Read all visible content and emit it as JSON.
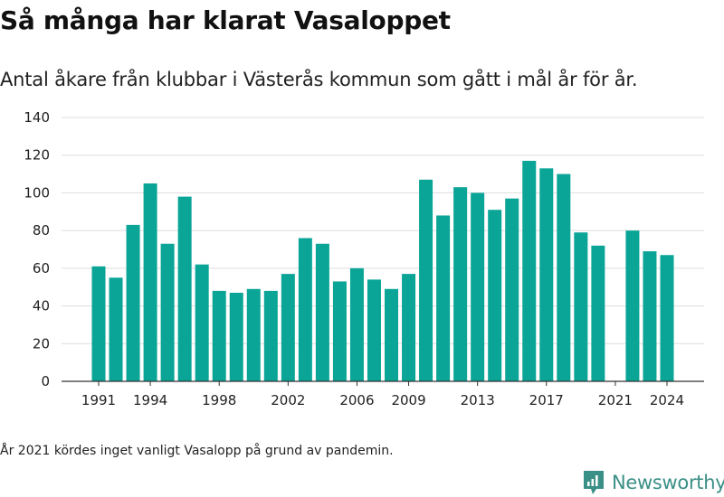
{
  "title": "Så många har klarat Vasaloppet",
  "subtitle": "Antal åkare från klubbar i Västerås kommun som gått i mål år för år.",
  "note": "År 2021 kördes inget vanligt Vasalopp på grund av pandemin.",
  "brand": "Newsworthy",
  "colors": {
    "bar": "#0aa596",
    "grid": "#dddddd",
    "axis": "#333333",
    "brand": "#3a8f86"
  },
  "chart_data": {
    "type": "bar",
    "title": "Så många har klarat Vasaloppet",
    "xlabel": "",
    "ylabel": "",
    "ylim": [
      0,
      140
    ],
    "yticks": [
      0,
      20,
      40,
      60,
      80,
      100,
      120,
      140
    ],
    "xtick_labels": [
      "1991",
      "1994",
      "1998",
      "2002",
      "2006",
      "2009",
      "2013",
      "2017",
      "2021",
      "2024"
    ],
    "grid": true,
    "categories": [
      1991,
      1992,
      1993,
      1994,
      1995,
      1996,
      1997,
      1998,
      1999,
      2000,
      2001,
      2002,
      2003,
      2004,
      2005,
      2006,
      2007,
      2008,
      2009,
      2010,
      2011,
      2012,
      2013,
      2014,
      2015,
      2016,
      2017,
      2018,
      2019,
      2020,
      2021,
      2022,
      2023,
      2024
    ],
    "values": [
      61,
      55,
      83,
      105,
      73,
      98,
      62,
      48,
      47,
      49,
      48,
      57,
      76,
      73,
      53,
      60,
      54,
      49,
      57,
      107,
      88,
      103,
      100,
      91,
      97,
      117,
      113,
      110,
      79,
      72,
      null,
      80,
      69,
      67
    ]
  }
}
